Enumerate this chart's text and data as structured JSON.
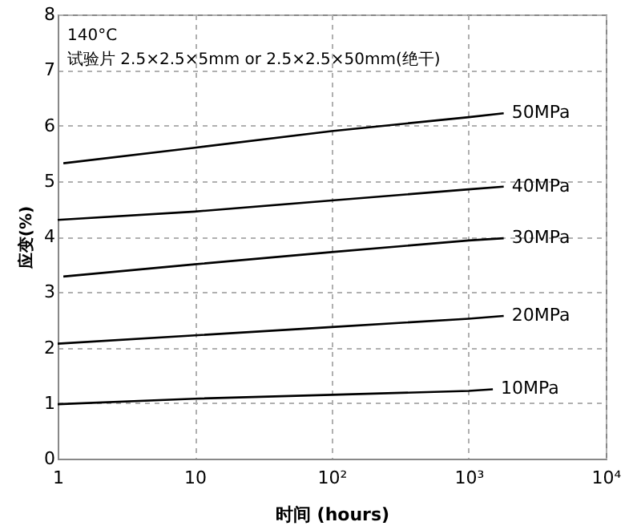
{
  "chart_data": {
    "type": "line",
    "xlabel": "时间 (hours)",
    "ylabel": "应变(%)",
    "log": "x",
    "annotations": [
      "140°C",
      "试验片 2.5×2.5×5mm or 2.5×2.5×50mm(绝干)"
    ],
    "series": [
      {
        "name": "50MPa",
        "color": "#000000",
        "x": [
          1.1,
          10,
          100,
          1000,
          1800
        ],
        "values": [
          5.32,
          5.6,
          5.9,
          6.15,
          6.22
        ]
      },
      {
        "name": "40MPa",
        "color": "#000000",
        "x": [
          1,
          10,
          100,
          1000,
          1800
        ],
        "values": [
          4.3,
          4.45,
          4.65,
          4.85,
          4.9
        ]
      },
      {
        "name": "30MPa",
        "color": "#000000",
        "x": [
          1.1,
          10,
          100,
          1000,
          1800
        ],
        "values": [
          3.28,
          3.5,
          3.72,
          3.93,
          3.97
        ]
      },
      {
        "name": "20MPa",
        "color": "#000000",
        "x": [
          1,
          10,
          100,
          1000,
          1800
        ],
        "values": [
          2.07,
          2.22,
          2.37,
          2.52,
          2.57
        ]
      },
      {
        "name": "10MPa",
        "color": "#000000",
        "x": [
          1,
          10,
          100,
          1000,
          1500
        ],
        "values": [
          0.98,
          1.08,
          1.15,
          1.22,
          1.25
        ]
      }
    ],
    "xlim": [
      1,
      10000
    ],
    "xticks": [
      1,
      10,
      {
        "value": 100,
        "label": "10²"
      },
      {
        "value": 1000,
        "label": "10³"
      },
      {
        "value": 10000,
        "label": "10⁴"
      }
    ],
    "ylim": [
      0,
      8
    ],
    "yticks": [
      0,
      1,
      2,
      3,
      4,
      5,
      6,
      7,
      8
    ],
    "grid": true,
    "line_style": "solid",
    "marker": "none"
  }
}
